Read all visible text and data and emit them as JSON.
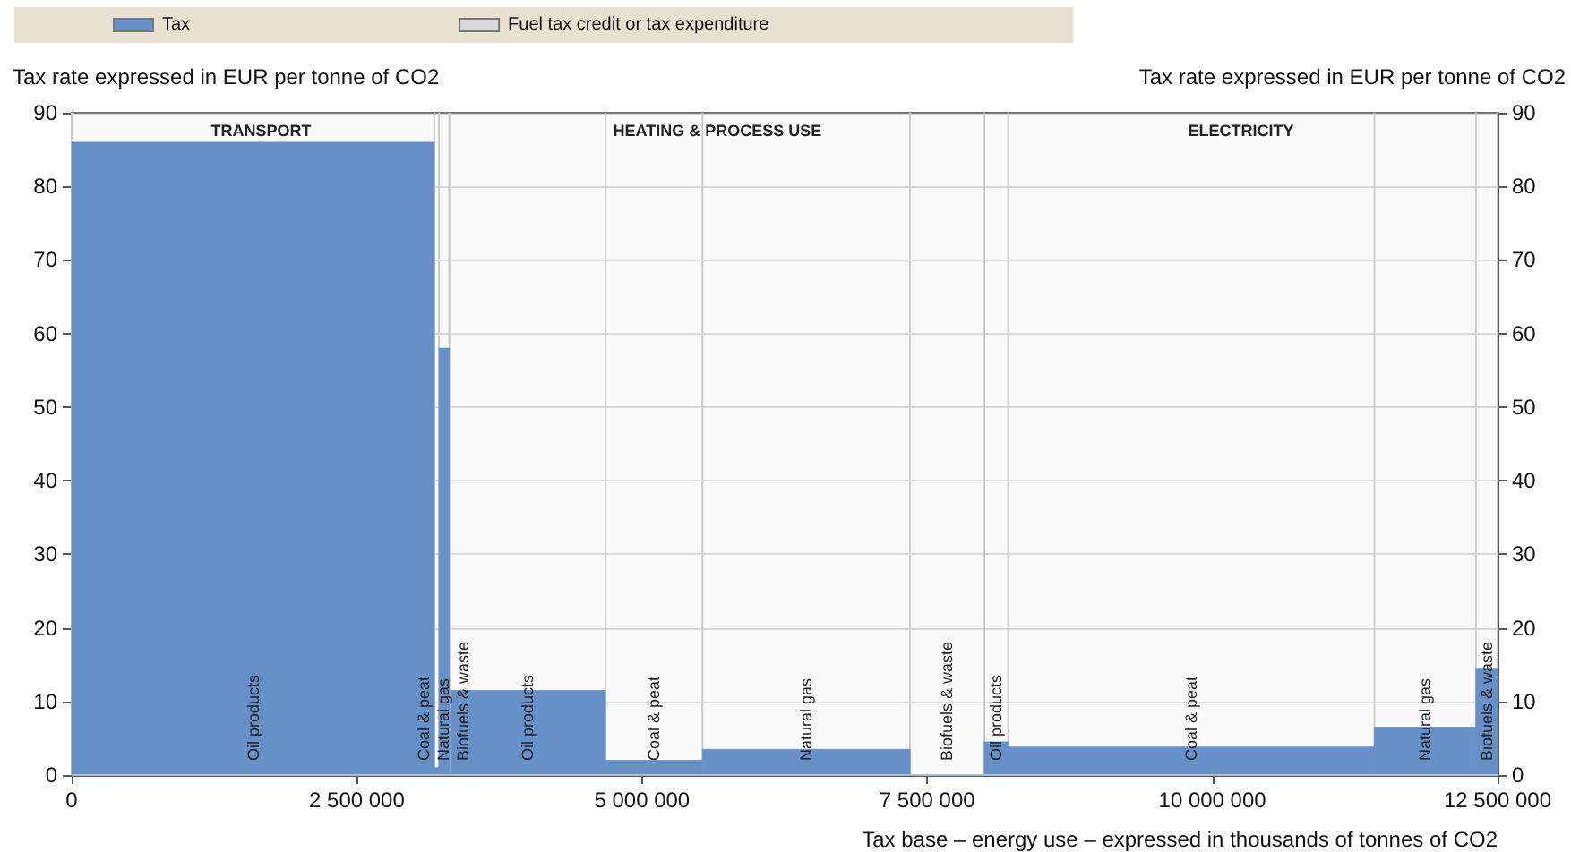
{
  "chart_data": {
    "type": "histogram",
    "xlabel": "Tax base – energy use – expressed in thousands of tonnes of CO2",
    "ylabel": "Tax rate expressed in EUR per tonne of CO2",
    "y2label": "Tax rate expressed in EUR per tonne of CO2",
    "bins": [
      0,
      3180000,
      3220000,
      3310000,
      3320000,
      4680000,
      5530000,
      7350000,
      8000000,
      8210000,
      11420000,
      12310000,
      12500000
    ],
    "categories": [
      "Oil products",
      "Coal & peat",
      "Natural gas",
      "Biofuels & waste",
      "Oil products",
      "Coal & peat",
      "Natural gas",
      "Biofuels & waste",
      "Oil products",
      "Coal & peat",
      "Natural gas",
      "Biofuels & waste"
    ],
    "series": [
      {
        "name": "Tax",
        "color": "#6690c8",
        "values": [
          86,
          1,
          58,
          0,
          11.5,
          2,
          3.5,
          0,
          4.5,
          3.8,
          6.5,
          14.5
        ]
      },
      {
        "name": "Fuel tax credit or tax expenditure",
        "color": "#d9d9d9",
        "values": [
          0,
          0,
          0,
          0,
          0,
          0,
          0,
          0,
          0,
          0,
          0,
          0
        ]
      }
    ],
    "bands": [
      {
        "axis": "x",
        "from": 0,
        "to": 3320000,
        "label": "TRANSPORT"
      },
      {
        "axis": "x",
        "from": 3320000,
        "to": 8000000,
        "label": "HEATING & PROCESS USE"
      },
      {
        "axis": "x",
        "from": 8000000,
        "to": 12500000,
        "label": "ELECTRICITY"
      }
    ],
    "xlim": [
      0,
      12500000
    ],
    "xticks": [
      0,
      2500000,
      5000000,
      7500000,
      10000000,
      12500000
    ],
    "ylim": [
      0,
      90
    ],
    "yticks": [
      0,
      10,
      20,
      30,
      40,
      50,
      60,
      70,
      80,
      90
    ],
    "y2lim": [
      0,
      90
    ],
    "y2ticks": [
      0,
      10,
      20,
      30,
      40,
      50,
      60,
      70,
      80,
      90
    ],
    "grid": "y",
    "legend": "top"
  }
}
